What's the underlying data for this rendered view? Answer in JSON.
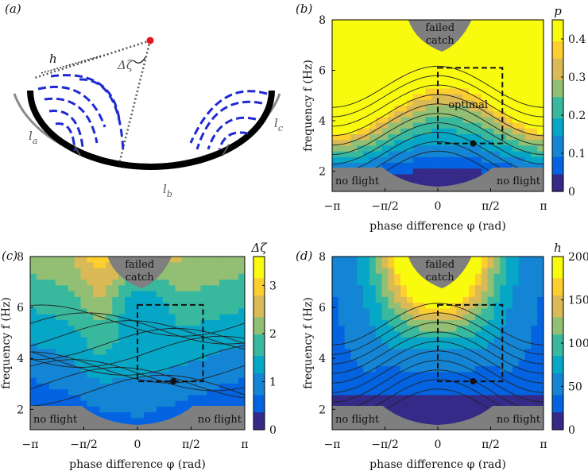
{
  "figure": {
    "panel_a": {
      "label": "(a)",
      "h_label": "h",
      "dzeta_label": "Δζ",
      "la_label": "l",
      "la_sub": "a",
      "lb_label": "l",
      "lb_sub": "b",
      "lc_label": "l",
      "lc_sub": "c"
    },
    "colors": {
      "parula": [
        "#352a87",
        "#0363e1",
        "#1485d4",
        "#06a7c6",
        "#38b99e",
        "#92bf73",
        "#d9ba56",
        "#fcce2e",
        "#f9fb0e"
      ],
      "gray": "#7f7f7f",
      "marker": "#111111",
      "box": "#111111",
      "arc": "#000000",
      "arrows": "#1f2ad4",
      "apex": "#e8141c"
    }
  },
  "chart_data": [
    {
      "panel": "(b)",
      "type": "heatmap",
      "xlabel": "phase difference φ (rad)",
      "ylabel": "frequency f (Hz)",
      "x_ticks": [
        "−π",
        "−π/2",
        "0",
        "π/2",
        "π"
      ],
      "y_ticks": [
        "2",
        "4",
        "6",
        "8"
      ],
      "xlim": [
        -3.1416,
        3.1416
      ],
      "ylim": [
        1.2,
        8.0
      ],
      "colorbar": {
        "label": "p",
        "ticks": [
          "0",
          "0.1",
          "0.2",
          "0.3",
          "0.4"
        ],
        "range": [
          0,
          0.45
        ]
      },
      "regions": {
        "failed": "failed\ncatch",
        "noflight_left": "no flight",
        "noflight_right": "no flight",
        "optimal": "optimal"
      },
      "optimal_box": {
        "phi": [
          0.0,
          1.92
        ],
        "f": [
          3.1,
          6.1
        ]
      },
      "optimum_point": {
        "phi": 1.05,
        "f": 3.1
      }
    },
    {
      "panel": "(c)",
      "type": "heatmap",
      "xlabel": "phase difference φ (rad)",
      "ylabel": "frequency f (Hz)",
      "x_ticks": [
        "−π",
        "−π/2",
        "0",
        "π/2",
        "π"
      ],
      "y_ticks": [
        "2",
        "4",
        "6",
        "8"
      ],
      "xlim": [
        -3.1416,
        3.1416
      ],
      "ylim": [
        1.2,
        8.0
      ],
      "colorbar": {
        "label": "Δζ",
        "ticks": [
          "0",
          "1",
          "2",
          "3"
        ],
        "range": [
          0,
          3.6
        ]
      },
      "regions": {
        "failed": "failed\ncatch",
        "noflight_left": "no flight",
        "noflight_right": "no flight"
      },
      "optimal_box": {
        "phi": [
          0.0,
          1.92
        ],
        "f": [
          3.1,
          6.1
        ]
      },
      "optimum_point": {
        "phi": 1.05,
        "f": 3.1
      }
    },
    {
      "panel": "(d)",
      "type": "heatmap",
      "xlabel": "phase difference φ (rad)",
      "ylabel": "frequency f (Hz)",
      "x_ticks": [
        "−π",
        "−π/2",
        "0",
        "π/2",
        "π"
      ],
      "y_ticks": [
        "2",
        "4",
        "6",
        "8"
      ],
      "xlim": [
        -3.1416,
        3.1416
      ],
      "ylim": [
        1.2,
        8.0
      ],
      "colorbar": {
        "label": "h",
        "ticks": [
          "0",
          "50",
          "100",
          "150",
          "200"
        ],
        "range": [
          0,
          200
        ]
      },
      "regions": {
        "failed": "failed\ncatch",
        "noflight_left": "no flight",
        "noflight_right": "no flight"
      },
      "optimal_box": {
        "phi": [
          0.0,
          1.92
        ],
        "f": [
          3.1,
          6.1
        ]
      },
      "optimum_point": {
        "phi": 1.05,
        "f": 3.1
      }
    }
  ]
}
